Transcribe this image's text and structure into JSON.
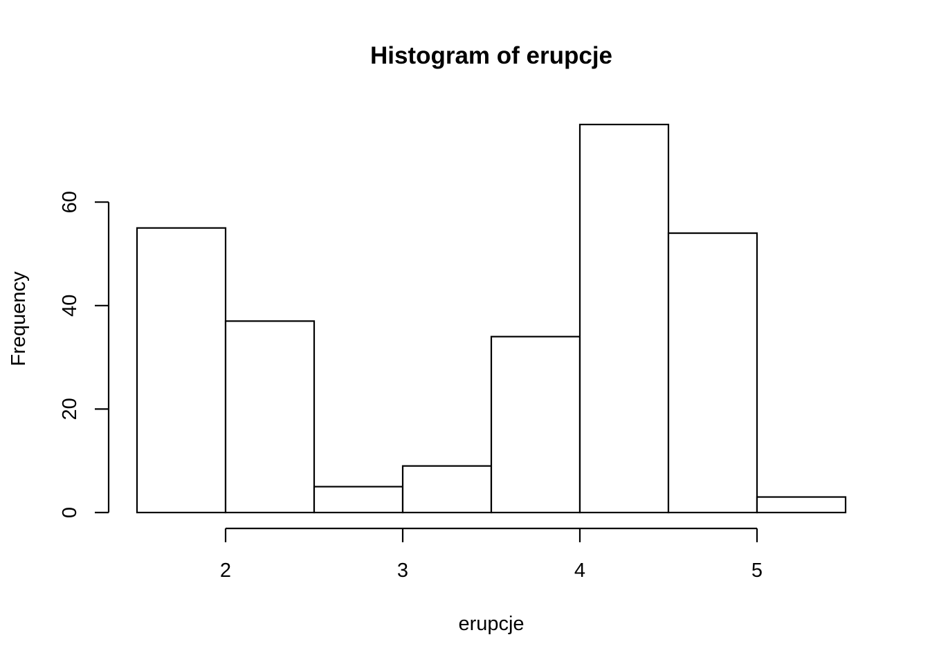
{
  "chart_data": {
    "type": "bar",
    "title": "Histogram of erupcje",
    "xlabel": "erupcje",
    "ylabel": "Frequency",
    "bins": [
      {
        "from": 1.5,
        "to": 2.0,
        "count": 55
      },
      {
        "from": 2.0,
        "to": 2.5,
        "count": 37
      },
      {
        "from": 2.5,
        "to": 3.0,
        "count": 5
      },
      {
        "from": 3.0,
        "to": 3.5,
        "count": 9
      },
      {
        "from": 3.5,
        "to": 4.0,
        "count": 34
      },
      {
        "from": 4.0,
        "to": 4.5,
        "count": 75
      },
      {
        "from": 4.5,
        "to": 5.0,
        "count": 54
      },
      {
        "from": 5.0,
        "to": 5.5,
        "count": 3
      }
    ],
    "x_ticks": [
      2,
      3,
      4,
      5
    ],
    "y_ticks": [
      0,
      20,
      40,
      60
    ],
    "xlim": [
      1.5,
      5.5
    ],
    "ylim": [
      0,
      75
    ],
    "grid": false,
    "colors": {
      "bar_fill": "#ffffff",
      "bar_stroke": "#000000",
      "text": "#000000"
    }
  }
}
